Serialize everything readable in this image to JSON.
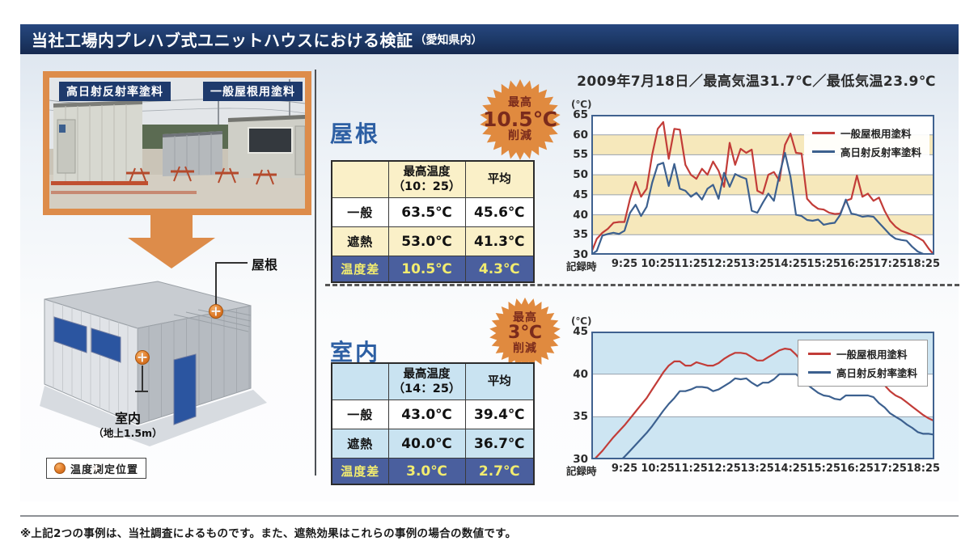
{
  "header": {
    "title": "当社工場内プレハブ式ユニットハウスにおける検証",
    "title_suffix": "（愛知県内）"
  },
  "photo": {
    "label_left": "高日射反射率塗料",
    "label_right": "一般屋根用塗料"
  },
  "illustration": {
    "roof_point_label": "屋根",
    "indoor_point_label": "室内",
    "indoor_point_sublabel": "（地上1.5m）",
    "legend_label": "温度測定位置"
  },
  "roof": {
    "title": "屋根",
    "badge": {
      "line1": "最高",
      "value": "10.5℃",
      "line2": "削減"
    },
    "table": {
      "header_metric_line1": "最高温度",
      "header_metric_line2": "（10：25）",
      "header_avg": "平均",
      "rows": [
        {
          "label": "一般",
          "max": "63.5℃",
          "avg": "45.6℃"
        },
        {
          "label": "遮熱",
          "max": "53.0℃",
          "avg": "41.3℃"
        },
        {
          "label": "温度差",
          "max": "10.5℃",
          "avg": "4.3℃"
        }
      ]
    }
  },
  "indoor": {
    "title": "室内",
    "badge": {
      "line1": "最高",
      "value": "3℃",
      "line2": "削減"
    },
    "table": {
      "header_metric_line1": "最高温度",
      "header_metric_line2": "（14：25）",
      "header_avg": "平均",
      "rows": [
        {
          "label": "一般",
          "max": "43.0℃",
          "avg": "39.4℃"
        },
        {
          "label": "遮熱",
          "max": "40.0℃",
          "avg": "36.7℃"
        },
        {
          "label": "温度差",
          "max": "3.0℃",
          "avg": "2.7℃"
        }
      ]
    }
  },
  "charts_header": "2009年7月18日／最高気温31.7℃／最低気温23.9℃",
  "footnote": "※上記2つの事例は、当社調査によるものです。また、遮熱効果はこれらの事例の場合の数値です。",
  "colors": {
    "header_navy": "#1e3a6c",
    "orange": "#dd8c4a",
    "badge_star": "#e08a3f",
    "badge_text": "#7b2b1c",
    "section_title_blue": "#2d5fa3",
    "table_cream": "#faf0c8",
    "table_lightblue": "#c9e3f1",
    "table_diff_blue": "#4a5f9e",
    "table_diff_yellow": "#f2ec6f",
    "series_general_red": "#c23c38",
    "series_reflect_blue": "#3c608f"
  },
  "chart_data": [
    {
      "type": "line",
      "location": "屋根",
      "unit_label": "(℃)",
      "x_axis_label": "記録時",
      "x_tick_labels": [
        "9:25",
        "10:25",
        "11:25",
        "12:25",
        "13:25",
        "14:25",
        "15:25",
        "16:25",
        "17:25",
        "18:25"
      ],
      "x_tick_minutes": [
        60,
        120,
        180,
        240,
        300,
        360,
        420,
        480,
        540,
        600
      ],
      "x_domain_minutes": [
        0,
        620
      ],
      "sample_step_minutes": 10,
      "y_ticks": [
        65,
        60,
        55,
        50,
        45,
        40,
        35,
        30
      ],
      "ylim": [
        30,
        65
      ],
      "grid": true,
      "band_fills_top_to_bottom": [
        "#ffffff",
        "#f6e8bb",
        "#ffffff",
        "#f6e8bb",
        "#ffffff",
        "#f6e8bb",
        "#ffffff"
      ],
      "legend_position": "top-right",
      "legend_boxed": false,
      "series": [
        {
          "name": "一般屋根用塗料",
          "color": "#c23c38",
          "values": [
            30.5,
            34,
            35.5,
            36.5,
            38,
            38.2,
            38.2,
            44,
            48.2,
            44.5,
            46.5,
            55,
            61.5,
            63.2,
            54,
            61.5,
            61.3,
            52.5,
            50,
            49,
            51.5,
            50,
            53.3,
            51,
            47,
            58,
            52.5,
            56.5,
            55.5,
            56.3,
            46,
            45.3,
            50,
            50.7,
            48.5,
            57.5,
            60.3,
            55.5,
            55.3,
            44,
            42.5,
            41.5,
            41.3,
            40.5,
            40.2,
            40.3,
            43.5,
            44,
            49.8,
            44.5,
            45.3,
            43.5,
            44.3,
            41,
            38.5,
            37,
            36,
            35.5,
            35,
            34.3,
            33.5,
            31.5,
            29.9
          ]
        },
        {
          "name": "高日射反射率塗料",
          "color": "#3c608f",
          "values": [
            30,
            31,
            34.8,
            35.2,
            35.5,
            35.2,
            36,
            40.5,
            42.5,
            39.7,
            42,
            48,
            52.5,
            53,
            47.2,
            52.7,
            46.5,
            46,
            44.5,
            45.5,
            43.8,
            46.5,
            47.5,
            44,
            50.5,
            47,
            50.2,
            49.5,
            49,
            41,
            40.5,
            43,
            45.3,
            43.5,
            50,
            55.5,
            49.5,
            40,
            39.7,
            38.7,
            38.5,
            38.8,
            37.5,
            37.8,
            38,
            40,
            43.8,
            40.3,
            40,
            39.5,
            39.7,
            39.5,
            38,
            36.5,
            35,
            34,
            33.7,
            33.5,
            32,
            30.8,
            30.2,
            29.9,
            29.7
          ]
        }
      ]
    },
    {
      "type": "line",
      "location": "室内",
      "unit_label": "(℃)",
      "x_axis_label": "記録時",
      "x_tick_labels": [
        "9:25",
        "10:25",
        "11:25",
        "12:25",
        "13:25",
        "14:25",
        "15:25",
        "16:25",
        "17:25",
        "18:25"
      ],
      "x_tick_minutes": [
        60,
        120,
        180,
        240,
        300,
        360,
        420,
        480,
        540,
        600
      ],
      "x_domain_minutes": [
        0,
        620
      ],
      "sample_step_minutes": 10,
      "y_ticks": [
        45,
        40,
        35,
        30
      ],
      "ylim": [
        30,
        45
      ],
      "grid": true,
      "band_fills_top_to_bottom": [
        "#cde5f2",
        "#ffffff",
        "#cde5f2"
      ],
      "legend_position": "top-right",
      "legend_boxed": true,
      "series": [
        {
          "name": "一般屋根用塗料",
          "color": "#c23c38",
          "values": [
            29.6,
            30.3,
            31,
            31.8,
            32.6,
            33.3,
            34,
            34.8,
            35.6,
            36.4,
            37.2,
            38.2,
            39.2,
            40.2,
            41,
            41.5,
            41.5,
            41,
            41,
            41.4,
            41.2,
            41,
            41,
            41.3,
            41.8,
            42.2,
            42.5,
            42.5,
            42.4,
            42,
            41.6,
            41.6,
            42,
            42.4,
            42.8,
            43,
            42.9,
            42.3,
            41.5,
            40.8,
            40.2,
            39.8,
            39.5,
            39.5,
            39.6,
            39.6,
            40.2,
            40.5,
            40.5,
            40,
            40,
            40,
            39.4,
            38.7,
            38,
            37.5,
            37.2,
            36.7,
            36.2,
            35.7,
            35.2,
            34.8,
            34.5
          ]
        },
        {
          "name": "高日射反射率塗料",
          "color": "#3c608f",
          "values": [
            27.5,
            27.9,
            28.3,
            28.7,
            29.2,
            29.7,
            30.3,
            31,
            31.7,
            32.4,
            33.1,
            33.9,
            34.8,
            35.7,
            36.5,
            37.2,
            38,
            38,
            38.2,
            38.5,
            38.5,
            38.4,
            38,
            38.2,
            38.6,
            39,
            39.5,
            39.4,
            39.5,
            39,
            38.6,
            39,
            39,
            39.4,
            40,
            40,
            40,
            40,
            39.4,
            38.8,
            38.3,
            37.8,
            37.5,
            37.4,
            37.1,
            37,
            37.5,
            37.5,
            37.5,
            37.5,
            37.5,
            37.3,
            36.6,
            36.1,
            35.4,
            35,
            34.6,
            34.1,
            33.7,
            33.2,
            33,
            33,
            32.9
          ]
        }
      ]
    }
  ]
}
